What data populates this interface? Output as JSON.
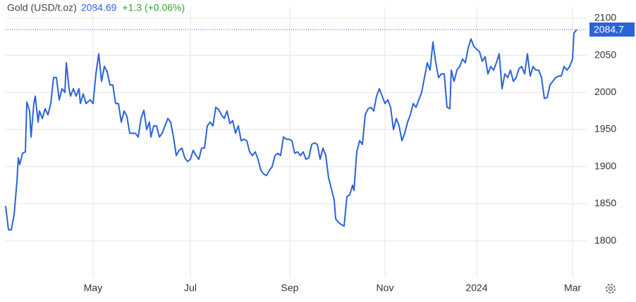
{
  "chart_data": {
    "type": "line",
    "title": "Gold (USD/t.oz)",
    "price": 2084.69,
    "change": "+1.3 (+0.06%)",
    "last_value": 2084.7,
    "series": [
      {
        "name": "Gold",
        "color": "#2b63d9",
        "x": [
          0,
          1,
          2,
          3,
          4,
          4.5,
          5,
          6,
          7,
          7.5,
          8.5,
          9,
          10,
          10.5,
          11.5,
          12,
          13,
          14,
          15,
          16,
          17,
          18,
          19,
          20,
          21,
          21.5,
          22.5,
          23,
          24,
          25,
          26,
          26.5,
          27.5,
          28.5,
          30,
          31,
          32,
          33,
          34,
          35,
          36,
          37,
          38,
          39,
          40,
          41,
          42,
          43,
          44,
          45,
          46,
          47,
          48,
          49,
          50,
          51,
          51.5,
          52.5,
          53.5,
          54.5,
          55.5,
          56.5,
          57.5,
          58.5,
          59.5,
          60.5,
          61.5,
          62.5,
          63.5,
          64.5,
          65.5,
          66.5,
          67.5,
          68.5,
          69.5,
          70.5,
          71.5,
          72.5,
          73.5,
          74.5,
          75.5,
          76.5,
          77.5,
          78.5,
          79.5,
          80.5,
          81.5,
          82.5,
          83.5,
          84.5,
          85.5,
          86.5,
          87.5,
          88.5,
          89.5,
          90.5,
          91.5,
          92.5,
          93.5,
          94.5,
          95.5,
          96.5,
          97.5,
          98.5,
          99.5,
          100.5,
          101.5,
          102.5,
          103.5,
          104.5,
          105.5,
          106.5,
          107.5,
          108.5,
          109.5,
          110.5,
          111.5,
          112.5,
          113.5,
          114.5,
          115.5,
          116.5,
          117,
          118,
          119,
          120,
          121,
          122,
          123,
          123.5,
          124.5,
          125.5,
          126.5,
          127.5,
          128.5,
          129.5,
          130.5,
          131.5,
          132.5,
          133.5,
          134.5,
          135.5,
          136.5,
          137.5,
          138.5,
          139.5,
          140.5,
          141.5,
          142.5,
          143.5,
          144.5,
          145.5,
          146.5,
          147.5,
          148.5,
          149.5,
          150.5,
          151.5,
          152.5,
          153.5,
          154.5,
          155.5,
          156.5,
          157.5,
          158,
          159,
          160,
          161,
          162,
          163,
          164,
          165,
          166,
          167,
          168,
          169,
          170,
          171,
          172,
          173,
          174,
          175,
          176,
          177,
          178,
          179,
          180,
          181,
          182,
          183,
          184,
          185,
          186,
          187,
          188,
          189,
          190,
          191,
          192,
          193,
          194,
          195,
          196,
          197,
          198,
          199,
          200,
          201,
          201.5,
          202.5
        ],
        "values": [
          1847,
          1815,
          1815,
          1835,
          1880,
          1912,
          1903,
          1918,
          1920,
          1987,
          1975,
          1940,
          1985,
          1995,
          1960,
          1975,
          1965,
          1978,
          1970,
          1985,
          2020,
          2020,
          1990,
          2005,
          2000,
          2040,
          2005,
          1995,
          2005,
          1995,
          2005,
          1985,
          1998,
          1985,
          1990,
          1985,
          2025,
          2052,
          2015,
          2035,
          2028,
          2010,
          2010,
          1985,
          1985,
          1960,
          1975,
          1968,
          1945,
          1945,
          1945,
          1940,
          1965,
          1976,
          1950,
          1960,
          1940,
          1955,
          1955,
          1940,
          1945,
          1955,
          1965,
          1960,
          1940,
          1915,
          1922,
          1925,
          1912,
          1907,
          1910,
          1922,
          1915,
          1910,
          1925,
          1925,
          1955,
          1960,
          1955,
          1980,
          1977,
          1970,
          1965,
          1975,
          1958,
          1962,
          1945,
          1955,
          1935,
          1937,
          1935,
          1920,
          1915,
          1920,
          1910,
          1895,
          1890,
          1888,
          1895,
          1900,
          1915,
          1918,
          1915,
          1940,
          1937,
          1937,
          1935,
          1918,
          1920,
          1915,
          1920,
          1910,
          1912,
          1930,
          1932,
          1930,
          1910,
          1925,
          1915,
          1885,
          1870,
          1855,
          1830,
          1825,
          1822,
          1820,
          1860,
          1862,
          1875,
          1868,
          1920,
          1935,
          1930,
          1970,
          1978,
          1980,
          1975,
          1995,
          2005,
          1995,
          1985,
          1990,
          1980,
          1950,
          1965,
          1955,
          1935,
          1945,
          1960,
          1970,
          1985,
          1980,
          1990,
          2000,
          2020,
          2040,
          2030,
          2068,
          2040,
          2020,
          2025,
          2025,
          1980,
          1978,
          2030,
          2015,
          2030,
          2035,
          2045,
          2040,
          2060,
          2072,
          2062,
          2058,
          2055,
          2042,
          2048,
          2025,
          2035,
          2030,
          2040,
          2052,
          2005,
          2025,
          2020,
          2030,
          2015,
          2020,
          2032,
          2035,
          2025,
          2052,
          2022,
          2035,
          2030,
          2030,
          2020,
          1992,
          1993,
          2010,
          2015,
          2020,
          2022,
          2022,
          2035,
          2030,
          2035,
          2045,
          2080,
          2084.7
        ]
      }
    ],
    "xlim": [
      0,
      206
    ],
    "ylim": [
      1750,
      2115
    ],
    "xticks": [
      {
        "value": 31,
        "label": "May"
      },
      {
        "value": 65.5,
        "label": "Jul"
      },
      {
        "value": 100.75,
        "label": "Sep"
      },
      {
        "value": 134.5,
        "label": "Nov"
      },
      {
        "value": 167,
        "label": "2024"
      },
      {
        "value": 201,
        "label": "Mar"
      }
    ],
    "yticks": [
      1800,
      1850,
      1900,
      1950,
      2000,
      2050,
      2100
    ],
    "grid": true
  }
}
